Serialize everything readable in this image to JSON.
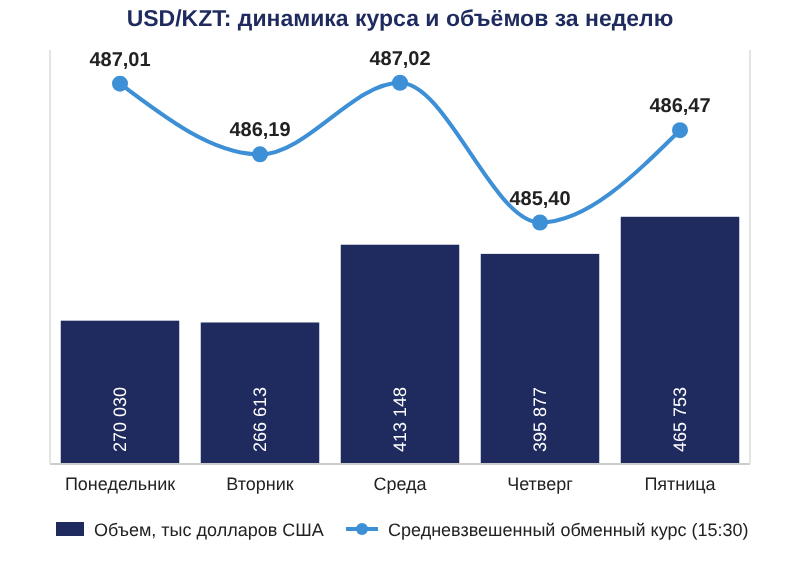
{
  "chart_data": {
    "type": "bar",
    "title": "USD/KZT: динамика курса и объёмов за неделю",
    "categories": [
      "Понедельник",
      "Вторник",
      "Среда",
      "Четверг",
      "Пятница"
    ],
    "series": [
      {
        "type": "bar",
        "name": "Объем, тыс долларов США",
        "color": "#1f2b5e",
        "values": [
          270030,
          266613,
          413148,
          395877,
          465753
        ],
        "value_labels": [
          "270 030",
          "266 613",
          "413 148",
          "395 877",
          "465 753"
        ]
      },
      {
        "type": "line",
        "axis": "y2",
        "name": "Средневзвешенный обменный курс (15:30)",
        "color": "#3d8fd6",
        "values": [
          487.01,
          486.19,
          487.02,
          485.4,
          486.47
        ],
        "value_labels": [
          "487,01",
          "486,19",
          "487,02",
          "485,40",
          "486,47"
        ]
      }
    ],
    "ylim": [
      0,
      780000
    ],
    "y2lim": [
      482.6,
      487.4
    ],
    "legend": "bottom",
    "marker": "circle"
  }
}
